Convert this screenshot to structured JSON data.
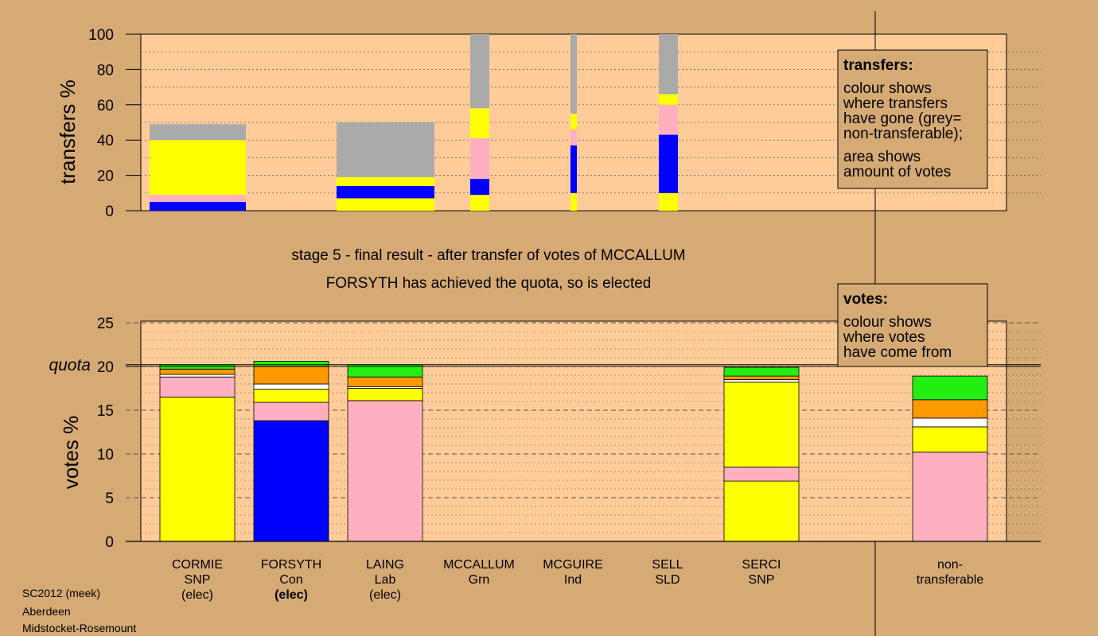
{
  "colors": {
    "background": "#d6aa74",
    "plot_fill": "#ffcc99",
    "SNP": "#ffff00",
    "Con": "#0000ff",
    "Lab": "#ffb0c0",
    "Grn": "#22ee11",
    "Ind": "#ffffff",
    "SLD": "#ff9900",
    "nontransferable": "#aaaaaa"
  },
  "transfers_chart": {
    "ylabel": "transfers %",
    "yticks": [
      "0",
      "20",
      "40",
      "60",
      "80",
      "100"
    ],
    "ylim": [
      0,
      100
    ],
    "legend": {
      "title": "transfers:",
      "lines1": [
        "colour shows",
        "where transfers",
        "have gone (grey=",
        "non-transferable);"
      ],
      "lines2": [
        "area shows",
        "amount of votes"
      ]
    }
  },
  "captions": {
    "line1": "stage 5 - final result - after transfer of votes of MCCALLUM",
    "line2": "FORSYTH has achieved the quota, so is elected"
  },
  "votes_chart": {
    "ylabel": "votes %",
    "yticks": [
      "0",
      "5",
      "10",
      "15",
      "20",
      "25"
    ],
    "ylim": [
      0,
      25
    ],
    "quota_label": "quota",
    "quota_value": 20.2,
    "legend": {
      "title": "votes:",
      "lines": [
        "colour shows",
        "where votes",
        "have come from"
      ]
    }
  },
  "candidates": [
    {
      "name": "CORMIE",
      "party": "SNP",
      "status": "(elec)",
      "bold_status": false
    },
    {
      "name": "FORSYTH",
      "party": "Con",
      "status": "(elec)",
      "bold_status": true
    },
    {
      "name": "LAING",
      "party": "Lab",
      "status": "(elec)",
      "bold_status": false
    },
    {
      "name": "MCCALLUM",
      "party": "Grn",
      "status": "",
      "bold_status": false
    },
    {
      "name": "MCGUIRE",
      "party": "Ind",
      "status": "",
      "bold_status": false
    },
    {
      "name": "SELL",
      "party": "SLD",
      "status": "",
      "bold_status": false
    },
    {
      "name": "SERCI",
      "party": "SNP",
      "status": "",
      "bold_status": false
    }
  ],
  "nontransferable_label": [
    "non-",
    "transferable"
  ],
  "footer": [
    "SC2012 (meek)",
    "Aberdeen",
    "Midstocket-Rosemount"
  ],
  "chart_data": [
    {
      "type": "bar",
      "title": "",
      "xlabel": "",
      "ylabel": "transfers %",
      "ylim": [
        0,
        100
      ],
      "grid": true,
      "bars": [
        {
          "width": "wide",
          "segments": [
            {
              "party": "Con",
              "value": 5
            },
            {
              "party": "Lab",
              "value": 4
            },
            {
              "party": "SNP",
              "value": 31
            },
            {
              "party": "nontransferable",
              "value": 9
            }
          ]
        },
        {
          "width": "wide",
          "segments": [
            {
              "party": "SNP",
              "value": 7
            },
            {
              "party": "Con",
              "value": 7
            },
            {
              "party": "SNP",
              "value": 5
            },
            {
              "party": "nontransferable",
              "value": 31
            }
          ]
        },
        {
          "width": "medium",
          "segments": [
            {
              "party": "SNP",
              "value": 9
            },
            {
              "party": "Con",
              "value": 9
            },
            {
              "party": "Lab",
              "value": 23
            },
            {
              "party": "SNP",
              "value": 17
            },
            {
              "party": "nontransferable",
              "value": 42
            }
          ]
        },
        {
          "width": "narrow",
          "segments": [
            {
              "party": "SNP",
              "value": 10
            },
            {
              "party": "Con",
              "value": 27
            },
            {
              "party": "Lab",
              "value": 9
            },
            {
              "party": "SNP",
              "value": 9
            },
            {
              "party": "nontransferable",
              "value": 45
            }
          ]
        },
        {
          "width": "medium",
          "segments": [
            {
              "party": "SNP",
              "value": 10
            },
            {
              "party": "Con",
              "value": 33
            },
            {
              "party": "Lab",
              "value": 17
            },
            {
              "party": "SNP",
              "value": 6
            },
            {
              "party": "nontransferable",
              "value": 34
            }
          ]
        }
      ]
    },
    {
      "type": "bar",
      "title": "",
      "xlabel": "",
      "ylabel": "votes %",
      "ylim": [
        0,
        25
      ],
      "grid": true,
      "quota": 20.2,
      "bars": [
        {
          "label": "CORMIE",
          "segments": [
            {
              "party": "SNP",
              "value": 16.5
            },
            {
              "party": "Lab",
              "value": 2.3
            },
            {
              "party": "Ind",
              "value": 0.3
            },
            {
              "party": "SLD",
              "value": 0.6
            },
            {
              "party": "Grn",
              "value": 0.5
            }
          ]
        },
        {
          "label": "FORSYTH",
          "segments": [
            {
              "party": "Con",
              "value": 13.8
            },
            {
              "party": "Lab",
              "value": 2.1
            },
            {
              "party": "SNP",
              "value": 1.5
            },
            {
              "party": "Ind",
              "value": 0.6
            },
            {
              "party": "SLD",
              "value": 2.0
            },
            {
              "party": "Grn",
              "value": 0.6
            }
          ]
        },
        {
          "label": "LAING",
          "segments": [
            {
              "party": "Lab",
              "value": 16.1
            },
            {
              "party": "SNP",
              "value": 1.4
            },
            {
              "party": "Ind",
              "value": 0.2
            },
            {
              "party": "SLD",
              "value": 1.1
            },
            {
              "party": "Grn",
              "value": 1.4
            }
          ]
        },
        {
          "label": "MCCALLUM",
          "segments": []
        },
        {
          "label": "MCGUIRE",
          "segments": []
        },
        {
          "label": "SELL",
          "segments": []
        },
        {
          "label": "SERCI",
          "segments": [
            {
              "party": "SNP",
              "value": 6.9
            },
            {
              "party": "Lab",
              "value": 1.6
            },
            {
              "party": "SNP",
              "value": 9.7
            },
            {
              "party": "Ind",
              "value": 0.3
            },
            {
              "party": "SLD",
              "value": 0.4
            },
            {
              "party": "Grn",
              "value": 1.0
            }
          ]
        },
        {
          "label": "non-transferable",
          "segments": [
            {
              "party": "Lab",
              "value": 10.2
            },
            {
              "party": "SNP",
              "value": 2.9
            },
            {
              "party": "Ind",
              "value": 1.0
            },
            {
              "party": "SLD",
              "value": 2.1
            },
            {
              "party": "Grn",
              "value": 2.7
            }
          ]
        }
      ]
    }
  ]
}
